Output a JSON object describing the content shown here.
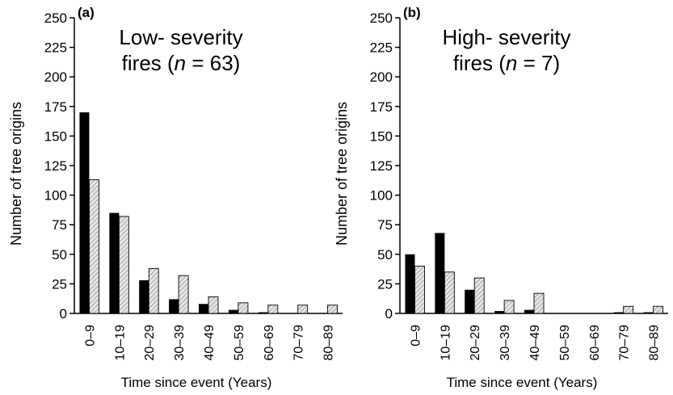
{
  "chart_data": [
    {
      "type": "bar",
      "panel_label": "(a)",
      "title_line1": "Low- severity",
      "title_line2_pre": "fires (",
      "title_n": "n",
      "title_line2_post": " = 63)",
      "ylabel": "Number of tree origins",
      "xlabel": "Time since event (Years)",
      "ylim": [
        0,
        250
      ],
      "yticks": [
        "0",
        "25",
        "50",
        "75",
        "100",
        "125",
        "150",
        "175",
        "200",
        "225",
        "250"
      ],
      "categories": [
        "0–9",
        "10–19",
        "20–29",
        "30–39",
        "40–49",
        "50–59",
        "60–69",
        "70–79",
        "80–89"
      ],
      "series": [
        {
          "values": [
            170,
            85,
            28,
            12,
            8,
            3,
            1,
            0,
            0
          ],
          "color": "#000000",
          "fill": "solid"
        },
        {
          "values": [
            113,
            82,
            38,
            32,
            14,
            9,
            7,
            7,
            7
          ],
          "color": "#d9d9d9",
          "fill": "hatched"
        }
      ]
    },
    {
      "type": "bar",
      "panel_label": "(b)",
      "title_line1": "High- severity",
      "title_line2_pre": "fires (",
      "title_n": "n",
      "title_line2_post": " = 7)",
      "ylabel": "Number of tree origins",
      "xlabel": "Time since event (Years)",
      "ylim": [
        0,
        250
      ],
      "yticks": [
        "0",
        "25",
        "50",
        "75",
        "100",
        "125",
        "150",
        "175",
        "200",
        "225",
        "250"
      ],
      "categories": [
        "0–9",
        "10–19",
        "20–29",
        "30–39",
        "40–49",
        "50–59",
        "60–69",
        "70–79",
        "80–89"
      ],
      "series": [
        {
          "values": [
            50,
            68,
            20,
            2,
            3,
            0,
            0,
            1,
            1
          ],
          "color": "#000000",
          "fill": "solid"
        },
        {
          "values": [
            40,
            35,
            30,
            11,
            17,
            0,
            0,
            6,
            6
          ],
          "color": "#d9d9d9",
          "fill": "hatched"
        }
      ]
    }
  ]
}
